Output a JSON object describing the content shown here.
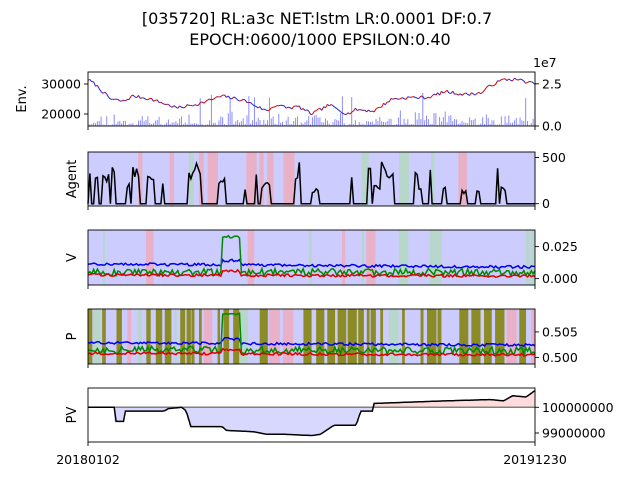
{
  "title": {
    "line1": "[035720] RL:a3c NET:lstm LR:0.0001 DF:0.7",
    "line2": "EPOCH:0600/1000 EPSILON:0.40"
  },
  "colors": {
    "axis": "#000000",
    "price": "#2020d0",
    "price_up": "#dd0000",
    "volume": "#8c8cff",
    "agent": "#000000",
    "band_blue": "#8080ff",
    "band_red": "#ff9a9a",
    "band_green": "#a8e0a0",
    "band_olive": "#808000",
    "v_blue": "#0000ee",
    "v_green": "#008800",
    "v_red": "#dd0000",
    "pv_line": "#000000",
    "pv_base": "#808080",
    "pv_fill_low": "#d8d8ff",
    "pv_fill_high": "#ffdcdc"
  },
  "x_axis": {
    "start_label": "20180102",
    "end_label": "20191230"
  },
  "chart_data": [
    {
      "type": "line",
      "panel": "env",
      "ylabel": "Env.",
      "y_ticks": [
        "20000",
        "30000"
      ],
      "y_range": [
        16000,
        34000
      ],
      "price_anchors": [
        [
          0,
          31500
        ],
        [
          0.015,
          30000
        ],
        [
          0.05,
          25000
        ],
        [
          0.08,
          24200
        ],
        [
          0.1,
          26000
        ],
        [
          0.14,
          25000
        ],
        [
          0.2,
          22000
        ],
        [
          0.25,
          23500
        ],
        [
          0.3,
          26000
        ],
        [
          0.35,
          24500
        ],
        [
          0.4,
          21000
        ],
        [
          0.42,
          23000
        ],
        [
          0.45,
          22000
        ],
        [
          0.47,
          22500
        ],
        [
          0.5,
          20000
        ],
        [
          0.54,
          23000
        ],
        [
          0.58,
          20000
        ],
        [
          0.6,
          21500
        ],
        [
          0.64,
          21000
        ],
        [
          0.68,
          25000
        ],
        [
          0.72,
          25500
        ],
        [
          0.76,
          25500
        ],
        [
          0.78,
          26500
        ],
        [
          0.8,
          27500
        ],
        [
          0.84,
          26500
        ],
        [
          0.88,
          27000
        ],
        [
          0.9,
          29500
        ],
        [
          0.93,
          31500
        ],
        [
          0.96,
          31500
        ],
        [
          1,
          30000
        ]
      ],
      "right_axis": {
        "offset_label": "1e7",
        "ticks": [
          "0.0",
          "2.5"
        ],
        "range": [
          0,
          3.2
        ]
      }
    },
    {
      "type": "line",
      "panel": "agent",
      "ylabel": "Agent",
      "y_ticks": [
        "0",
        "500"
      ],
      "y_range": [
        -25,
        560
      ]
    },
    {
      "type": "line",
      "panel": "v",
      "ylabel": "V",
      "y_ticks": [
        "0.000",
        "0.025"
      ],
      "y_range": [
        -0.005,
        0.038
      ],
      "series": [
        {
          "color_key": "v_blue",
          "base": 0.0115,
          "end": 0.009
        },
        {
          "color_key": "v_green",
          "base": 0.005,
          "end": 0.005,
          "spike": 0.034
        },
        {
          "color_key": "v_red",
          "base": 0.003,
          "end": 0.002
        }
      ]
    },
    {
      "type": "line",
      "panel": "p",
      "ylabel": "P",
      "y_ticks": [
        "0.500",
        "0.505"
      ],
      "y_range": [
        0.4987,
        0.5095
      ],
      "series": [
        {
          "color_key": "v_blue",
          "base": 0.5029,
          "end": 0.5024
        },
        {
          "color_key": "v_green",
          "base": 0.5015,
          "end": 0.5013,
          "spike": 0.5088
        },
        {
          "color_key": "v_red",
          "base": 0.5008,
          "end": 0.5005
        }
      ]
    },
    {
      "type": "line",
      "panel": "pv",
      "ylabel": "PV",
      "y_ticks": [
        "99000000",
        "100000000"
      ],
      "y_range": [
        98650000,
        100750000
      ],
      "baseline": 100000000,
      "anchors": [
        [
          0,
          100000000
        ],
        [
          0.06,
          100000000
        ],
        [
          0.06,
          99450000
        ],
        [
          0.08,
          99450000
        ],
        [
          0.08,
          99850000
        ],
        [
          0.17,
          99850000
        ],
        [
          0.18,
          99950000
        ],
        [
          0.21,
          100000000
        ],
        [
          0.22,
          99850000
        ],
        [
          0.23,
          99250000
        ],
        [
          0.3,
          99250000
        ],
        [
          0.31,
          99100000
        ],
        [
          0.37,
          99050000
        ],
        [
          0.4,
          98950000
        ],
        [
          0.44,
          98950000
        ],
        [
          0.5,
          98900000
        ],
        [
          0.52,
          98950000
        ],
        [
          0.55,
          99300000
        ],
        [
          0.6,
          99300000
        ],
        [
          0.61,
          99850000
        ],
        [
          0.64,
          99850000
        ],
        [
          0.64,
          100150000
        ],
        [
          0.72,
          100200000
        ],
        [
          0.8,
          100250000
        ],
        [
          0.9,
          100300000
        ],
        [
          0.93,
          100250000
        ],
        [
          0.95,
          100450000
        ],
        [
          0.98,
          100400000
        ],
        [
          1,
          100650000
        ]
      ]
    }
  ]
}
